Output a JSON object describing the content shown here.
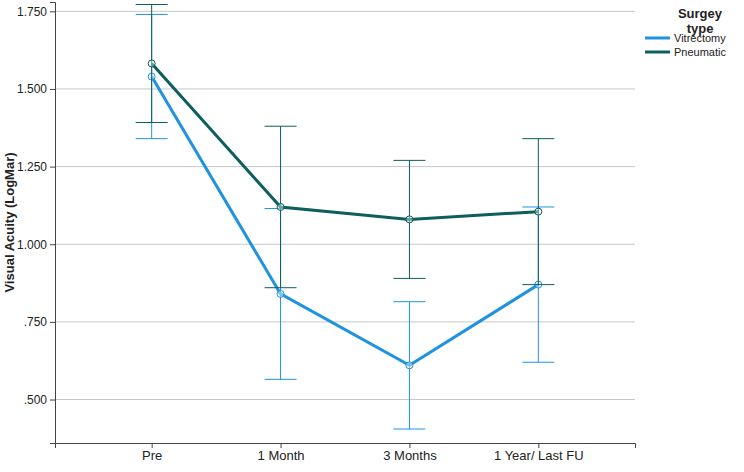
{
  "chart_data": {
    "type": "line",
    "y_label": "Visual Acuity (LogMar)",
    "legend_title": "Surgey type",
    "categories": [
      "Pre",
      "1 Month",
      "3 Months",
      "1 Year/ Last FU"
    ],
    "series": [
      {
        "name": "Vitrectomy",
        "color": "#1f93e0",
        "marker": "circle",
        "values": [
          1.54,
          0.84,
          0.61,
          0.87
        ],
        "errors": [
          0.2,
          0.275,
          0.205,
          0.25
        ]
      },
      {
        "name": "Pneumatic",
        "color": "#0d5e5e",
        "marker": "circle",
        "values": [
          1.582,
          1.12,
          1.08,
          1.105
        ],
        "errors": [
          0.19,
          0.26,
          0.19,
          0.235
        ]
      }
    ],
    "ylim": [
      0.36,
      1.78
    ],
    "yticks": [
      {
        "value": 0.5,
        "label": ".500"
      },
      {
        "value": 0.75,
        "label": ".750"
      },
      {
        "value": 1.0,
        "label": "1.000"
      },
      {
        "value": 1.25,
        "label": "1.250"
      },
      {
        "value": 1.5,
        "label": "1.500"
      },
      {
        "value": 1.75,
        "label": "1.750"
      }
    ],
    "grid": true,
    "legend": "top-right"
  }
}
